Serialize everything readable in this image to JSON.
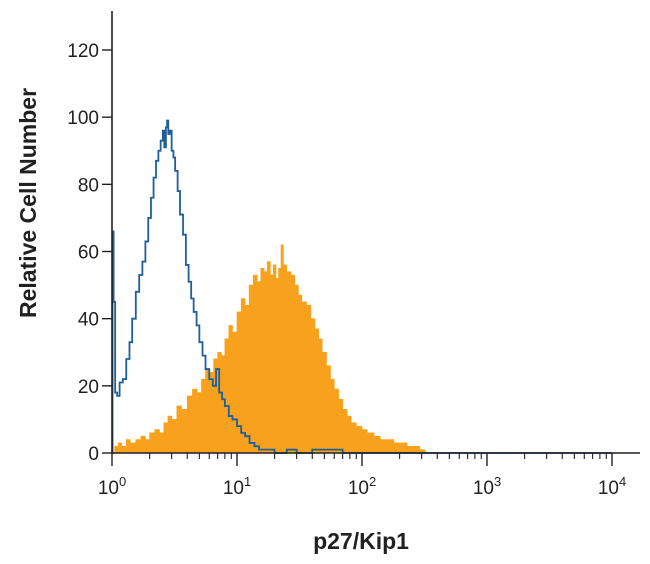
{
  "chart_data": {
    "type": "histogram",
    "title": "",
    "xlabel": "p27/Kip1",
    "ylabel": "Relative Cell Number",
    "x_scale": "log",
    "xlim": [
      1,
      10000
    ],
    "ylim": [
      0,
      130
    ],
    "x_ticks": [
      {
        "value": 1,
        "base": "10",
        "exp": "0"
      },
      {
        "value": 10,
        "base": "10",
        "exp": "1"
      },
      {
        "value": 100,
        "base": "10",
        "exp": "2"
      },
      {
        "value": 1000,
        "base": "10",
        "exp": "3"
      },
      {
        "value": 10000,
        "base": "10",
        "exp": "4"
      }
    ],
    "y_ticks": [
      0,
      20,
      40,
      60,
      80,
      100,
      120
    ],
    "grid": false,
    "legend": "none",
    "series": [
      {
        "style": "filled",
        "color": "#f7a11d",
        "points": [
          [
            1.0,
            0
          ],
          [
            1.05,
            2
          ],
          [
            1.12,
            3
          ],
          [
            1.2,
            2
          ],
          [
            1.3,
            4
          ],
          [
            1.4,
            3
          ],
          [
            1.55,
            4
          ],
          [
            1.7,
            5
          ],
          [
            1.85,
            4
          ],
          [
            2.0,
            6
          ],
          [
            2.2,
            7
          ],
          [
            2.4,
            6
          ],
          [
            2.6,
            9
          ],
          [
            2.8,
            11
          ],
          [
            3.0,
            10
          ],
          [
            3.3,
            14
          ],
          [
            3.6,
            13
          ],
          [
            4.0,
            17
          ],
          [
            4.4,
            19
          ],
          [
            4.8,
            18
          ],
          [
            5.2,
            22
          ],
          [
            5.6,
            25
          ],
          [
            6.0,
            24
          ],
          [
            6.5,
            28
          ],
          [
            7.0,
            30
          ],
          [
            7.5,
            29
          ],
          [
            8.0,
            34
          ],
          [
            8.6,
            38
          ],
          [
            9.2,
            36
          ],
          [
            10.0,
            42
          ],
          [
            10.8,
            46
          ],
          [
            11.6,
            44
          ],
          [
            12.5,
            50
          ],
          [
            13.5,
            53
          ],
          [
            14.5,
            51
          ],
          [
            15.5,
            55
          ],
          [
            16.5,
            54
          ],
          [
            17.5,
            57
          ],
          [
            18.5,
            53
          ],
          [
            19.5,
            56
          ],
          [
            20.5,
            52
          ],
          [
            21.5,
            55
          ],
          [
            22.5,
            62
          ],
          [
            23.5,
            56
          ],
          [
            25.0,
            54
          ],
          [
            27.0,
            53
          ],
          [
            29.0,
            50
          ],
          [
            31.0,
            47
          ],
          [
            33.0,
            45
          ],
          [
            36.0,
            44
          ],
          [
            39.0,
            40
          ],
          [
            42.0,
            37
          ],
          [
            45.0,
            34
          ],
          [
            48.0,
            30
          ],
          [
            52.0,
            26
          ],
          [
            56.0,
            22
          ],
          [
            60.0,
            19
          ],
          [
            65.0,
            16
          ],
          [
            70.0,
            13
          ],
          [
            76.0,
            11
          ],
          [
            82.0,
            9
          ],
          [
            90.0,
            8
          ],
          [
            100,
            7
          ],
          [
            110,
            6
          ],
          [
            125,
            5
          ],
          [
            140,
            4
          ],
          [
            160,
            4
          ],
          [
            180,
            3
          ],
          [
            200,
            3
          ],
          [
            230,
            2
          ],
          [
            260,
            2
          ],
          [
            290,
            1
          ],
          [
            320,
            0
          ]
        ]
      },
      {
        "style": "outline",
        "color": "#1d5f9a",
        "points": [
          [
            1.0,
            0
          ],
          [
            1.01,
            66
          ],
          [
            1.03,
            45
          ],
          [
            1.06,
            18
          ],
          [
            1.1,
            17
          ],
          [
            1.15,
            21
          ],
          [
            1.22,
            22
          ],
          [
            1.3,
            28
          ],
          [
            1.38,
            33
          ],
          [
            1.45,
            40
          ],
          [
            1.55,
            48
          ],
          [
            1.65,
            53
          ],
          [
            1.75,
            57
          ],
          [
            1.85,
            63
          ],
          [
            1.95,
            70
          ],
          [
            2.05,
            76
          ],
          [
            2.15,
            82
          ],
          [
            2.25,
            87
          ],
          [
            2.35,
            90
          ],
          [
            2.45,
            93
          ],
          [
            2.55,
            96
          ],
          [
            2.62,
            91
          ],
          [
            2.7,
            97
          ],
          [
            2.76,
            99
          ],
          [
            2.82,
            95
          ],
          [
            2.9,
            96
          ],
          [
            3.0,
            90
          ],
          [
            3.1,
            88
          ],
          [
            3.2,
            84
          ],
          [
            3.35,
            78
          ],
          [
            3.5,
            71
          ],
          [
            3.7,
            65
          ],
          [
            3.9,
            56
          ],
          [
            4.1,
            51
          ],
          [
            4.3,
            46
          ],
          [
            4.5,
            42
          ],
          [
            4.75,
            38
          ],
          [
            5.0,
            33
          ],
          [
            5.3,
            29
          ],
          [
            5.6,
            25
          ],
          [
            6.0,
            22
          ],
          [
            6.4,
            20
          ],
          [
            6.8,
            25
          ],
          [
            7.2,
            18
          ],
          [
            7.6,
            16
          ],
          [
            8.0,
            14
          ],
          [
            8.6,
            11
          ],
          [
            9.2,
            10
          ],
          [
            10.0,
            8
          ],
          [
            10.8,
            6
          ],
          [
            11.6,
            5
          ],
          [
            12.6,
            3
          ],
          [
            13.8,
            2
          ],
          [
            15.0,
            1
          ],
          [
            17.0,
            1
          ],
          [
            20.0,
            0
          ],
          [
            25.0,
            1
          ],
          [
            30.0,
            0
          ],
          [
            40.0,
            1
          ],
          [
            55.0,
            1
          ],
          [
            70.0,
            0
          ],
          [
            100,
            0
          ],
          [
            10000,
            0
          ]
        ]
      }
    ]
  }
}
